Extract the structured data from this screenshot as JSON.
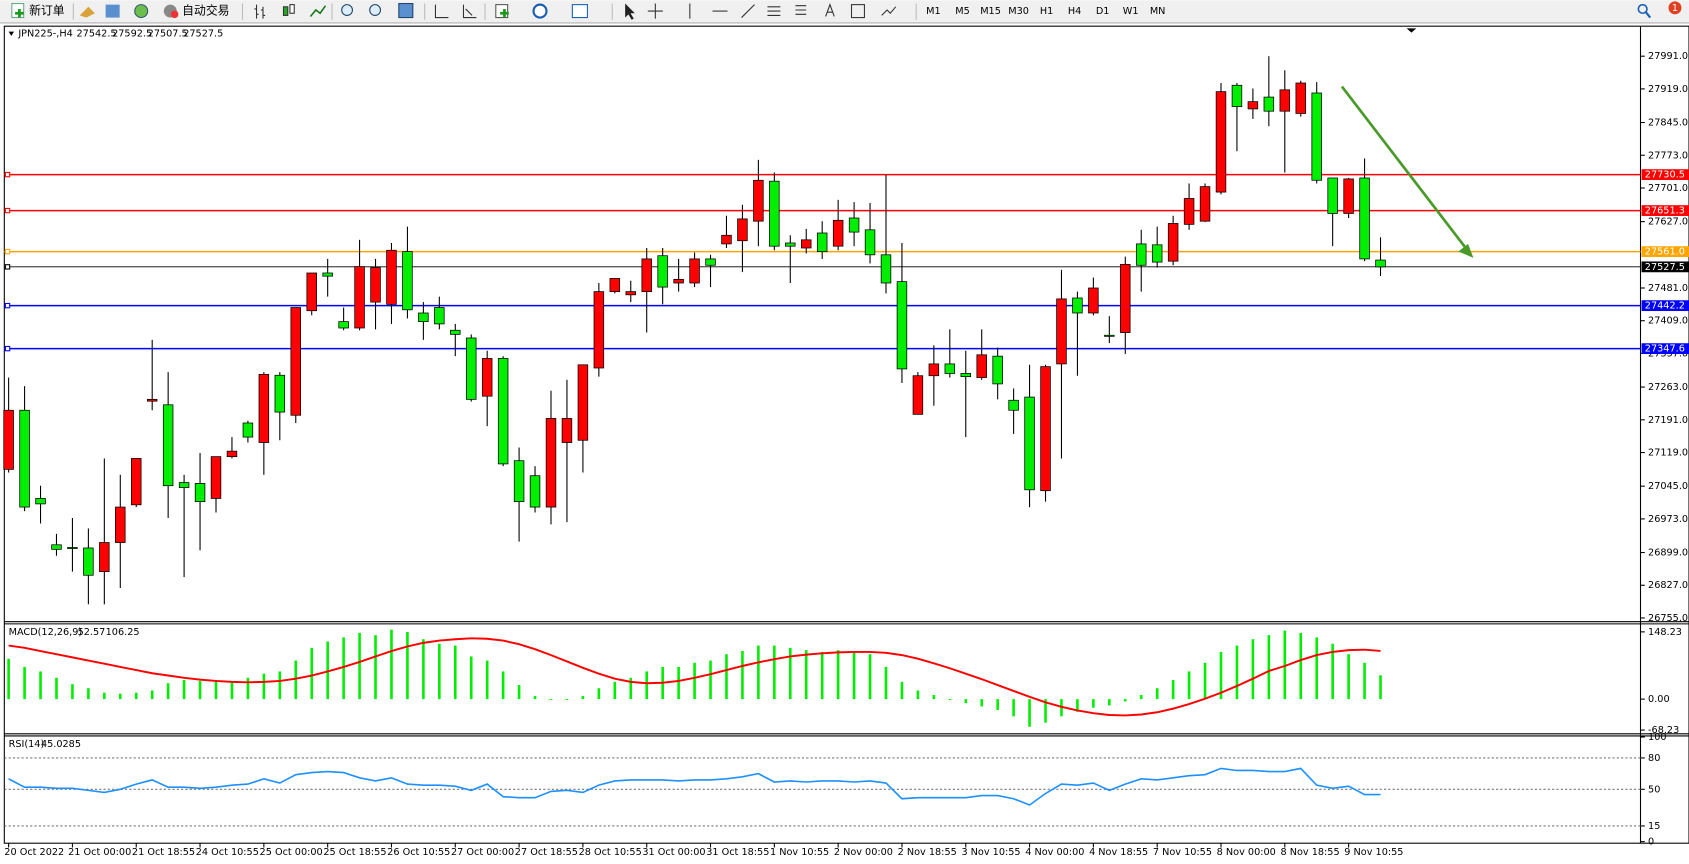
{
  "toolbar": {
    "new_order": "新订单",
    "auto_trading": "自动交易",
    "timeframes": [
      "M1",
      "M5",
      "M15",
      "M30",
      "H1",
      "H4",
      "D1",
      "W1",
      "MN"
    ],
    "badge": "1"
  },
  "chart_data": {
    "type": "candlestick",
    "title": "JPN225-,H4",
    "categories": [
      "20 Oct 2022",
      null,
      null,
      null,
      "21 Oct 00:00",
      null,
      null,
      null,
      "21 Oct 18:55",
      null,
      null,
      null,
      "24 Oct 10:55",
      null,
      null,
      null,
      "25 Oct 00:00",
      null,
      null,
      null,
      "25 Oct 18:55",
      null,
      null,
      null,
      "26 Oct 10:55",
      null,
      null,
      null,
      "27 Oct 00:00",
      null,
      null,
      null,
      "27 Oct 18:55",
      null,
      null,
      null,
      "28 Oct 10:55",
      null,
      null,
      null,
      "31 Oct 00:00",
      null,
      null,
      null,
      "31 Oct 18:55",
      null,
      null,
      null,
      "1 Nov 10:55",
      null,
      null,
      null,
      "2 Nov 00:00",
      null,
      null,
      null,
      "2 Nov 18:55",
      null,
      null,
      null,
      "3 Nov 10:55",
      null,
      null,
      null,
      "4 Nov 00:00",
      null,
      null,
      null,
      "4 Nov 18:55",
      null,
      null,
      null,
      "7 Nov 10:55",
      null,
      null,
      null,
      "8 Nov 00:00",
      null,
      null,
      null,
      "8 Nov 18:55",
      null,
      null,
      null,
      "9 Nov 10:55",
      null,
      null
    ],
    "ohlc": [
      [
        27082,
        27284,
        27075,
        27212
      ],
      [
        27212,
        27265,
        26990,
        26999
      ],
      [
        27018,
        27046,
        26963,
        27006
      ],
      [
        26916,
        26940,
        26892,
        26906
      ],
      [
        26910,
        26975,
        26857,
        26908
      ],
      [
        26909,
        26952,
        26785,
        26849
      ],
      [
        26857,
        27106,
        26785,
        26921
      ],
      [
        26921,
        27070,
        26821,
        26999
      ],
      [
        27004,
        27106,
        26999,
        27106
      ],
      [
        27232,
        27367,
        27212,
        27236
      ],
      [
        27224,
        27296,
        26975,
        27046
      ],
      [
        27053,
        27070,
        26845,
        27042
      ],
      [
        27051,
        27118,
        26904,
        27011
      ],
      [
        27018,
        27110,
        26987,
        27110
      ],
      [
        27110,
        27153,
        27106,
        27122
      ],
      [
        27184,
        27189,
        27141,
        27153
      ],
      [
        27141,
        27296,
        27070,
        27291
      ],
      [
        27289,
        27296,
        27146,
        27208
      ],
      [
        27201,
        27438,
        27184,
        27438
      ],
      [
        27431,
        27514,
        27421,
        27514
      ],
      [
        27514,
        27545,
        27462,
        27507
      ],
      [
        27407,
        27438,
        27388,
        27393
      ],
      [
        27393,
        27587,
        27388,
        27528
      ],
      [
        27450,
        27545,
        27390,
        27526
      ],
      [
        27445,
        27580,
        27402,
        27564
      ],
      [
        27561,
        27616,
        27414,
        27433
      ],
      [
        27426,
        27450,
        27367,
        27407
      ],
      [
        27438,
        27462,
        27390,
        27402
      ],
      [
        27388,
        27402,
        27331,
        27379
      ],
      [
        27371,
        27379,
        27231,
        27236
      ],
      [
        27243,
        27343,
        27177,
        27326
      ],
      [
        27326,
        27331,
        27089,
        27094
      ],
      [
        27101,
        27130,
        26923,
        27011
      ],
      [
        27068,
        27089,
        26987,
        26999
      ],
      [
        26999,
        27255,
        26961,
        27194
      ],
      [
        27141,
        27279,
        26966,
        27194
      ],
      [
        27146,
        27312,
        27075,
        27312
      ],
      [
        27305,
        27492,
        27286,
        27473
      ],
      [
        27473,
        27502,
        27469,
        27502
      ],
      [
        27466,
        27497,
        27450,
        27473
      ],
      [
        27473,
        27569,
        27383,
        27545
      ],
      [
        27552,
        27569,
        27445,
        27483
      ],
      [
        27492,
        27545,
        27473,
        27500
      ],
      [
        27492,
        27559,
        27483,
        27545
      ],
      [
        27545,
        27554,
        27483,
        27531
      ],
      [
        27578,
        27640,
        27569,
        27597
      ],
      [
        27585,
        27664,
        27516,
        27633
      ],
      [
        27628,
        27763,
        27573,
        27718
      ],
      [
        27716,
        27735,
        27564,
        27573
      ],
      [
        27580,
        27597,
        27492,
        27573
      ],
      [
        27569,
        27611,
        27557,
        27587
      ],
      [
        27602,
        27628,
        27545,
        27561
      ],
      [
        27573,
        27675,
        27564,
        27630
      ],
      [
        27635,
        27670,
        27573,
        27604
      ],
      [
        27609,
        27668,
        27535,
        27554
      ],
      [
        27554,
        27730,
        27469,
        27492
      ],
      [
        27495,
        27580,
        27272,
        27303
      ],
      [
        27203,
        27296,
        27203,
        27288
      ],
      [
        27288,
        27355,
        27222,
        27314
      ],
      [
        27314,
        27390,
        27284,
        27293
      ],
      [
        27293,
        27343,
        27153,
        27286
      ],
      [
        27284,
        27390,
        27279,
        27334
      ],
      [
        27331,
        27350,
        27236,
        27270
      ],
      [
        27234,
        27260,
        27160,
        27212
      ],
      [
        27241,
        27312,
        26999,
        27037
      ],
      [
        27035,
        27312,
        27011,
        27308
      ],
      [
        27314,
        27521,
        27106,
        27457
      ],
      [
        27459,
        27473,
        27288,
        27426
      ],
      [
        27426,
        27504,
        27421,
        27481
      ],
      [
        27377,
        27419,
        27360,
        27376
      ],
      [
        27383,
        27550,
        27336,
        27533
      ],
      [
        27578,
        27609,
        27473,
        27531
      ],
      [
        27576,
        27616,
        27526,
        27538
      ],
      [
        27540,
        27640,
        27531,
        27623
      ],
      [
        27621,
        27711,
        27609,
        27678
      ],
      [
        27628,
        27711,
        27626,
        27704
      ],
      [
        27692,
        27932,
        27687,
        27913
      ],
      [
        27927,
        27932,
        27782,
        27880
      ],
      [
        27875,
        27920,
        27853,
        27891
      ],
      [
        27901,
        27991,
        27837,
        27870
      ],
      [
        27870,
        27960,
        27735,
        27917
      ],
      [
        27865,
        27937,
        27858,
        27932
      ],
      [
        27910,
        27934,
        27711,
        27718
      ],
      [
        27723,
        27723,
        27573,
        27645
      ],
      [
        27645,
        27723,
        27635,
        27721
      ],
      [
        27723,
        27766,
        27540,
        27545
      ],
      [
        27542.5,
        27592.5,
        27507.5,
        27527.5
      ]
    ],
    "up_color": "#ff0000",
    "down_color": "#00ee00",
    "ylim": [
      26748,
      28057
    ],
    "yticks": [
      {
        "value": 27991,
        "label": "27991.0"
      },
      {
        "value": 27919,
        "label": "27919.0"
      },
      {
        "value": 27845,
        "label": "27845.0"
      },
      {
        "value": 27773,
        "label": "27773.0"
      },
      {
        "value": 27701,
        "label": "27701.0"
      },
      {
        "value": 27627,
        "label": "27627.0"
      },
      {
        "value": 27481,
        "label": "27481.0"
      },
      {
        "value": 27409,
        "label": "27409.0"
      },
      {
        "value": 27337,
        "label": "27337.0"
      },
      {
        "value": 27263,
        "label": "27263.0"
      },
      {
        "value": 27191,
        "label": "27191.0"
      },
      {
        "value": 27119,
        "label": "27119.0"
      },
      {
        "value": 27045,
        "label": "27045.0"
      },
      {
        "value": 26973,
        "label": "26973.0"
      },
      {
        "value": 26899,
        "label": "26899.0"
      },
      {
        "value": 26827,
        "label": "26827.0"
      },
      {
        "value": 26755,
        "label": "26755.0"
      }
    ],
    "levels": [
      {
        "value": 27730.5,
        "label": "27730.5",
        "color": "#ff0000"
      },
      {
        "value": 27651.3,
        "label": "27651.3",
        "color": "#ff0000"
      },
      {
        "value": 27561.0,
        "label": "27561.0",
        "color": "#ffa500"
      },
      {
        "value": 27527.5,
        "label": "27527.5",
        "color": "#000000"
      },
      {
        "value": 27442.2,
        "label": "27442.2",
        "color": "#0000ff"
      },
      {
        "value": 27347.6,
        "label": "27347.6",
        "color": "#0000ff"
      }
    ],
    "macd": {
      "title": "MACD(12,26,9)",
      "hist_color": "#00ee00",
      "signal_color": "#ff0000",
      "ylim": [
        -75.3,
        164.7
      ],
      "yticks": [
        148.23,
        {
          "value": 0,
          "label": "0.00"
        },
        -68.23
      ],
      "histogram": [
        89,
        71,
        61,
        47,
        33,
        24,
        14,
        12,
        14,
        19,
        35,
        42,
        40,
        42,
        38,
        47,
        56,
        61,
        85,
        113,
        127,
        136,
        146,
        141,
        153,
        148,
        132,
        122,
        118,
        94,
        85,
        61,
        31,
        7,
        -2,
        -2,
        7,
        24,
        38,
        47,
        61,
        71,
        71,
        80,
        85,
        99,
        106,
        118,
        118,
        113,
        108,
        104,
        108,
        104,
        99,
        71,
        38,
        19,
        9,
        -2,
        -9,
        -16,
        -24,
        -38,
        -61,
        -52,
        -38,
        -28,
        -19,
        -14,
        -5,
        9,
        24,
        42,
        61,
        80,
        104,
        118,
        132,
        141,
        151,
        146,
        136,
        122,
        99,
        80,
        52.57
      ],
      "signal": [
        118,
        113,
        106,
        99,
        92,
        85,
        78,
        71,
        64,
        57,
        52,
        47,
        43,
        40,
        38,
        37,
        38,
        40,
        45,
        52,
        61,
        71,
        82,
        94,
        106,
        116,
        124,
        129,
        132,
        134,
        133,
        129,
        121,
        110,
        97,
        83,
        69,
        56,
        45,
        38,
        35,
        36,
        40,
        47,
        55,
        64,
        73,
        81,
        88,
        94,
        98,
        101,
        103,
        104,
        104,
        102,
        97,
        89,
        79,
        68,
        56,
        44,
        31,
        18,
        5,
        -7,
        -17,
        -25,
        -31,
        -35,
        -36,
        -34,
        -29,
        -21,
        -11,
        1,
        14,
        29,
        45,
        62,
        73,
        86,
        97,
        104,
        108,
        109,
        106.25
      ]
    },
    "rsi": {
      "title": "RSI(14)",
      "color": "#1e90ff",
      "ylim": [
        -1.5,
        100.5
      ],
      "yticks": [
        100,
        80,
        50,
        15,
        0
      ],
      "levels": [
        80,
        50,
        15
      ],
      "values": [
        60,
        52,
        52,
        51,
        51,
        49,
        47,
        50,
        55,
        59,
        52,
        52,
        51,
        52,
        54,
        55,
        60,
        56,
        64,
        66,
        67,
        66,
        61,
        58,
        61,
        55,
        54,
        54,
        53,
        49,
        55,
        43,
        42,
        42,
        48,
        49,
        47,
        54,
        58,
        59,
        59,
        59,
        58,
        59,
        59,
        60,
        62,
        65,
        57,
        58,
        57,
        58,
        58,
        57,
        58,
        56,
        41,
        42,
        42,
        42,
        42,
        44,
        44,
        41,
        35,
        46,
        55,
        54,
        56,
        49,
        55,
        60,
        59,
        61,
        63,
        64,
        70,
        68,
        68,
        67,
        67,
        70,
        54,
        51,
        53,
        45,
        45.0285
      ]
    }
  }
}
